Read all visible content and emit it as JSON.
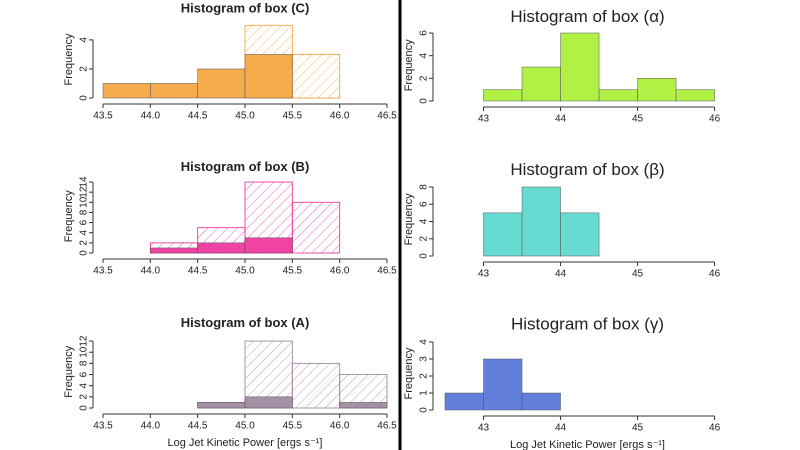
{
  "chart_data": [
    {
      "type": "histogram",
      "title": "Histogram of box (C)",
      "ylabel": "Frequency",
      "bins": [
        43.5,
        44,
        44.5,
        45,
        45.5,
        46,
        46.5
      ],
      "series": [
        {
          "color": "#f5a742",
          "hatched": true,
          "values": [
            0,
            0,
            0,
            5,
            3,
            0
          ]
        },
        {
          "color": "#f5a742",
          "hatched": false,
          "values": [
            1,
            1,
            2,
            3,
            0,
            0
          ]
        }
      ],
      "xlim": [
        43.5,
        46.5
      ],
      "ylim": [
        0,
        5.3
      ],
      "xticks": [
        43.5,
        {
          "value": 44,
          "label": "44.0"
        },
        44.5,
        {
          "value": 45,
          "label": "45.0"
        },
        45.5,
        {
          "value": 46,
          "label": "46.0"
        },
        46.5
      ],
      "yticks": [
        0,
        2,
        4
      ]
    },
    {
      "type": "histogram",
      "title": "Histogram of box (B)",
      "ylabel": "Frequency",
      "bins": [
        43.5,
        44,
        44.5,
        45,
        45.5,
        46,
        46.5
      ],
      "series": [
        {
          "color": "#ee3a9e",
          "hatched": true,
          "values": [
            0,
            2,
            5,
            14,
            10,
            0
          ]
        },
        {
          "color": "#ee3a9e",
          "hatched": false,
          "values": [
            0,
            1,
            2,
            3,
            0,
            0
          ]
        }
      ],
      "xlim": [
        43.5,
        46.5
      ],
      "ylim": [
        0,
        14.5
      ],
      "xticks": [
        43.5,
        {
          "value": 44,
          "label": "44.0"
        },
        44.5,
        {
          "value": 45,
          "label": "45.0"
        },
        45.5,
        {
          "value": 46,
          "label": "46.0"
        },
        46.5
      ],
      "yticks": [
        0,
        2,
        4,
        6,
        8,
        10,
        12,
        14
      ]
    },
    {
      "type": "histogram",
      "title": "Histogram of box (A)",
      "ylabel": "Frequency",
      "xlabel": "Log Jet Kinetic Power [ergs s⁻¹]",
      "bins": [
        43.5,
        44,
        44.5,
        45,
        45.5,
        46,
        46.5
      ],
      "series": [
        {
          "color": "#a08aa0",
          "hatched": true,
          "values": [
            0,
            0,
            1,
            12,
            8,
            6
          ]
        },
        {
          "color": "#a08aa0",
          "hatched": false,
          "values": [
            0,
            0,
            1,
            2,
            0,
            1
          ]
        }
      ],
      "xlim": [
        43.5,
        46.5
      ],
      "ylim": [
        0,
        13
      ],
      "xticks": [
        43.5,
        {
          "value": 44,
          "label": "44.0"
        },
        44.5,
        {
          "value": 45,
          "label": "45.0"
        },
        45.5,
        {
          "value": 46,
          "label": "46.0"
        },
        46.5
      ],
      "yticks": [
        0,
        2,
        4,
        6,
        8,
        10,
        12
      ]
    },
    {
      "type": "histogram",
      "title": "Histogram of box (α)",
      "ylabel": "Frequency",
      "bins": [
        42.5,
        43,
        43.5,
        44,
        44.5,
        45,
        45.5,
        46
      ],
      "series": [
        {
          "color": "#adf03c",
          "hatched": false,
          "values": [
            0,
            1,
            3,
            6,
            1,
            2,
            1
          ]
        }
      ],
      "xlim": [
        42.5,
        46.2
      ],
      "ylim": [
        0,
        6.3
      ],
      "xticks": [
        43,
        44,
        45,
        46
      ],
      "yticks": [
        0,
        2,
        4,
        6
      ]
    },
    {
      "type": "histogram",
      "title": "Histogram of box (β)",
      "ylabel": "Frequency",
      "bins": [
        42.5,
        43,
        43.5,
        44,
        44.5,
        45,
        45.5,
        46
      ],
      "series": [
        {
          "color": "#5fd9cf",
          "hatched": false,
          "values": [
            0,
            5,
            8,
            5,
            0,
            0,
            0
          ]
        }
      ],
      "xlim": [
        42.5,
        46.2
      ],
      "ylim": [
        0,
        8.5
      ],
      "xticks": [
        43,
        44,
        45,
        46
      ],
      "yticks": [
        0,
        2,
        4,
        6,
        8
      ]
    },
    {
      "type": "histogram",
      "title": "Histogram of box (γ)",
      "ylabel": "Frequency",
      "xlabel": "Log Jet Kinetic Power [ergs s⁻¹]",
      "bins": [
        42.5,
        43,
        43.5,
        44,
        44.5,
        45,
        45.5,
        46
      ],
      "series": [
        {
          "color": "#5a78da",
          "hatched": false,
          "values": [
            1,
            3,
            1,
            0,
            0,
            0,
            0
          ]
        }
      ],
      "xlim": [
        42.5,
        46.2
      ],
      "ylim": [
        0,
        4.3
      ],
      "xticks": [
        43,
        44,
        45,
        46
      ],
      "yticks": [
        0,
        1,
        2,
        3,
        4
      ]
    }
  ]
}
